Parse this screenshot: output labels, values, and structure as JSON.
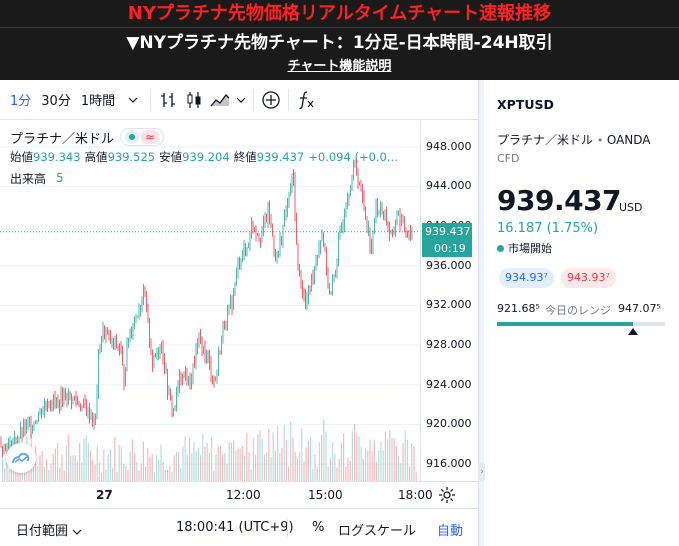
{
  "header": {
    "title": "NYプラチナ先物価格リアルタイムチャート速報推移",
    "subtitle": "▼NYプラチナ先物チャート：1分足-日本時間-24H取引",
    "link": "チャート機能説明"
  },
  "toolbar": {
    "intervals": [
      "1分",
      "30分",
      "1時間"
    ],
    "active_interval": "1分"
  },
  "legend": {
    "name": "プラチナ／米ドル",
    "ohlc": [
      {
        "label": "始値",
        "value": "939.343"
      },
      {
        "label": "高値",
        "value": "939.525"
      },
      {
        "label": "安値",
        "value": "939.204"
      },
      {
        "label": "終値",
        "value": "939.437"
      }
    ],
    "change": "+0.094 (+0.0...",
    "volume_label": "出来高",
    "volume_value": "5"
  },
  "chart_data": {
    "type": "line",
    "price_ticks": [
      "948.000",
      "944.000",
      "940.000",
      "936.000",
      "932.000",
      "928.000",
      "924.000",
      "920.000",
      "916.000"
    ],
    "tick_values": [
      948,
      944,
      940,
      936,
      932,
      928,
      924,
      920,
      916
    ],
    "ylim": [
      914.3,
      950.6
    ],
    "time_ticks": [
      "27",
      "12:00",
      "15:00",
      "18:00"
    ],
    "current_price": "939.437",
    "current_value": 939.437,
    "countdown": "00:19",
    "price_path": [
      [
        0.0,
        918.0
      ],
      [
        0.02,
        917.6
      ],
      [
        0.04,
        918.4
      ],
      [
        0.06,
        919.5
      ],
      [
        0.08,
        920.2
      ],
      [
        0.1,
        921.5
      ],
      [
        0.12,
        922.4
      ],
      [
        0.14,
        922.1
      ],
      [
        0.16,
        923.0
      ],
      [
        0.18,
        922.5
      ],
      [
        0.2,
        921.8
      ],
      [
        0.22,
        921.0
      ],
      [
        0.23,
        919.8
      ],
      [
        0.24,
        927.6
      ],
      [
        0.25,
        929.5
      ],
      [
        0.27,
        928.2
      ],
      [
        0.29,
        927.8
      ],
      [
        0.3,
        924.5
      ],
      [
        0.31,
        928.6
      ],
      [
        0.33,
        931.2
      ],
      [
        0.35,
        933.0
      ],
      [
        0.37,
        926.0
      ],
      [
        0.39,
        928.5
      ],
      [
        0.41,
        922.5
      ],
      [
        0.42,
        921.4
      ],
      [
        0.44,
        925.5
      ],
      [
        0.46,
        924.0
      ],
      [
        0.48,
        928.4
      ],
      [
        0.5,
        927.0
      ],
      [
        0.52,
        924.1
      ],
      [
        0.54,
        929.8
      ],
      [
        0.56,
        932.0
      ],
      [
        0.58,
        936.8
      ],
      [
        0.6,
        937.9
      ],
      [
        0.61,
        940.4
      ],
      [
        0.63,
        939.0
      ],
      [
        0.65,
        941.5
      ],
      [
        0.67,
        936.4
      ],
      [
        0.69,
        941.0
      ],
      [
        0.71,
        945.2
      ],
      [
        0.72,
        936.2
      ],
      [
        0.74,
        931.9
      ],
      [
        0.76,
        935.8
      ],
      [
        0.78,
        939.5
      ],
      [
        0.8,
        932.4
      ],
      [
        0.82,
        938.1
      ],
      [
        0.84,
        943.0
      ],
      [
        0.86,
        946.2
      ],
      [
        0.88,
        942.4
      ],
      [
        0.9,
        937.6
      ],
      [
        0.91,
        942.0
      ],
      [
        0.93,
        941.4
      ],
      [
        0.95,
        938.4
      ],
      [
        0.96,
        941.5
      ],
      [
        0.98,
        939.6
      ],
      [
        1.0,
        939.437
      ]
    ]
  },
  "bottom": {
    "date_range": "日付範囲",
    "clock": "18:00:41 (UTC+9)",
    "percent": "%",
    "log": "ログスケール",
    "auto": "自動"
  },
  "panel": {
    "symbol": "XPTUSD",
    "name": "プラチナ／米ドル",
    "broker": "OANDA",
    "type": "CFD",
    "price": "939.437",
    "currency": "USD",
    "change": "16.187 (1.75%)",
    "market_status": "市場開始",
    "bid": "934.93⁷",
    "ask": "943.93⁷",
    "range_low": "921.68⁵",
    "range_label": "今日のレンジ",
    "range_high": "947.07⁵",
    "range_position": 0.7
  },
  "colors": {
    "up": "#26a69a",
    "down": "#f23645",
    "accent": "#2962ff"
  }
}
